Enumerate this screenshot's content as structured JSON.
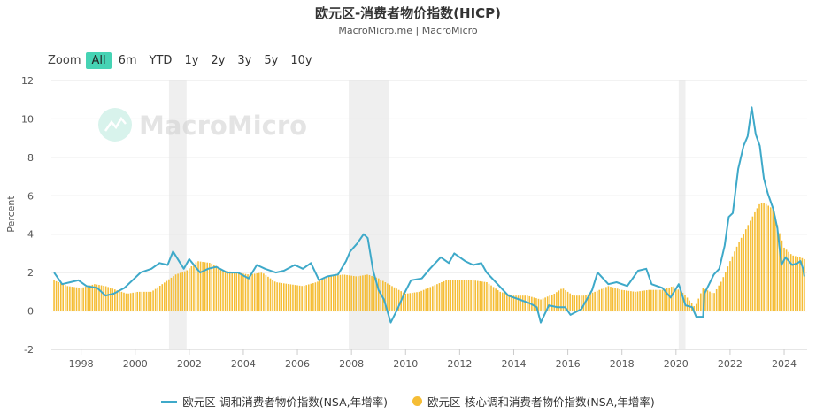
{
  "title": "欧元区-消费者物价指数(HICP)",
  "subtitle": "MacroMicro.me | MacroMicro",
  "watermark": "MacroMicro",
  "zoom": {
    "label": "Zoom",
    "buttons": [
      "All",
      "6m",
      "YTD",
      "1y",
      "2y",
      "3y",
      "5y",
      "10y"
    ],
    "active": "All"
  },
  "chart_data": {
    "type": "line",
    "ylabel": "Percent",
    "xlim": [
      1996.9,
      2024.85
    ],
    "ylim": [
      -2,
      12
    ],
    "yticks": [
      -2,
      0,
      2,
      4,
      6,
      8,
      10,
      12
    ],
    "xticks": [
      1998,
      2000,
      2002,
      2004,
      2006,
      2008,
      2010,
      2012,
      2014,
      2016,
      2018,
      2020,
      2022,
      2024
    ],
    "grid": true,
    "legend_position": "bottom",
    "recession_bands": [
      [
        2001.25,
        2001.9
      ],
      [
        2007.9,
        2009.4
      ],
      [
        2020.1,
        2020.35
      ]
    ],
    "series": [
      {
        "name": "欧元区-调和消费者物价指数(NSA,年增率)",
        "type": "line",
        "color": "#3ea9c9",
        "points": [
          [
            1997.0,
            2.0
          ],
          [
            1997.3,
            1.4
          ],
          [
            1997.6,
            1.5
          ],
          [
            1997.9,
            1.6
          ],
          [
            1998.2,
            1.3
          ],
          [
            1998.6,
            1.2
          ],
          [
            1998.9,
            0.8
          ],
          [
            1999.2,
            0.9
          ],
          [
            1999.6,
            1.2
          ],
          [
            1999.9,
            1.6
          ],
          [
            2000.2,
            2.0
          ],
          [
            2000.6,
            2.2
          ],
          [
            2000.9,
            2.5
          ],
          [
            2001.2,
            2.4
          ],
          [
            2001.4,
            3.1
          ],
          [
            2001.8,
            2.2
          ],
          [
            2002.0,
            2.7
          ],
          [
            2002.4,
            2.0
          ],
          [
            2002.7,
            2.2
          ],
          [
            2003.0,
            2.3
          ],
          [
            2003.4,
            2.0
          ],
          [
            2003.8,
            2.0
          ],
          [
            2004.2,
            1.7
          ],
          [
            2004.5,
            2.4
          ],
          [
            2004.8,
            2.2
          ],
          [
            2005.2,
            2.0
          ],
          [
            2005.5,
            2.1
          ],
          [
            2005.9,
            2.4
          ],
          [
            2006.2,
            2.2
          ],
          [
            2006.5,
            2.5
          ],
          [
            2006.8,
            1.6
          ],
          [
            2007.1,
            1.8
          ],
          [
            2007.5,
            1.9
          ],
          [
            2007.8,
            2.6
          ],
          [
            2007.95,
            3.1
          ],
          [
            2008.2,
            3.5
          ],
          [
            2008.45,
            4.0
          ],
          [
            2008.6,
            3.8
          ],
          [
            2008.8,
            2.1
          ],
          [
            2009.0,
            1.1
          ],
          [
            2009.2,
            0.6
          ],
          [
            2009.45,
            -0.6
          ],
          [
            2009.7,
            0.1
          ],
          [
            2009.95,
            0.9
          ],
          [
            2010.2,
            1.6
          ],
          [
            2010.6,
            1.7
          ],
          [
            2010.9,
            2.2
          ],
          [
            2011.3,
            2.8
          ],
          [
            2011.6,
            2.5
          ],
          [
            2011.8,
            3.0
          ],
          [
            2012.2,
            2.6
          ],
          [
            2012.5,
            2.4
          ],
          [
            2012.8,
            2.5
          ],
          [
            2013.0,
            2.0
          ],
          [
            2013.4,
            1.4
          ],
          [
            2013.8,
            0.8
          ],
          [
            2014.2,
            0.6
          ],
          [
            2014.6,
            0.4
          ],
          [
            2014.85,
            0.2
          ],
          [
            2015.0,
            -0.6
          ],
          [
            2015.3,
            0.3
          ],
          [
            2015.6,
            0.2
          ],
          [
            2015.9,
            0.2
          ],
          [
            2016.1,
            -0.2
          ],
          [
            2016.5,
            0.1
          ],
          [
            2016.9,
            1.1
          ],
          [
            2017.1,
            2.0
          ],
          [
            2017.5,
            1.4
          ],
          [
            2017.8,
            1.5
          ],
          [
            2018.2,
            1.3
          ],
          [
            2018.6,
            2.1
          ],
          [
            2018.9,
            2.2
          ],
          [
            2019.1,
            1.4
          ],
          [
            2019.5,
            1.2
          ],
          [
            2019.8,
            0.7
          ],
          [
            2020.1,
            1.4
          ],
          [
            2020.35,
            0.3
          ],
          [
            2020.6,
            0.2
          ],
          [
            2020.75,
            -0.3
          ],
          [
            2021.0,
            -0.3
          ],
          [
            2021.05,
            0.9
          ],
          [
            2021.4,
            1.9
          ],
          [
            2021.6,
            2.2
          ],
          [
            2021.8,
            3.4
          ],
          [
            2021.95,
            4.9
          ],
          [
            2022.1,
            5.1
          ],
          [
            2022.3,
            7.4
          ],
          [
            2022.5,
            8.6
          ],
          [
            2022.65,
            9.1
          ],
          [
            2022.8,
            10.6
          ],
          [
            2022.95,
            9.2
          ],
          [
            2023.1,
            8.6
          ],
          [
            2023.25,
            6.9
          ],
          [
            2023.4,
            6.1
          ],
          [
            2023.6,
            5.3
          ],
          [
            2023.75,
            4.3
          ],
          [
            2023.9,
            2.4
          ],
          [
            2024.05,
            2.8
          ],
          [
            2024.3,
            2.4
          ],
          [
            2024.5,
            2.5
          ],
          [
            2024.6,
            2.6
          ],
          [
            2024.7,
            2.2
          ],
          [
            2024.75,
            1.8
          ]
        ]
      },
      {
        "name": "欧元区-核心调和消费者物价指数(NSA,年增率)",
        "type": "bar",
        "color": "#f5bd35",
        "points": [
          [
            1997.0,
            1.6
          ],
          [
            1997.5,
            1.3
          ],
          [
            1998.0,
            1.2
          ],
          [
            1998.5,
            1.4
          ],
          [
            1998.9,
            1.3
          ],
          [
            1999.3,
            1.1
          ],
          [
            1999.7,
            0.9
          ],
          [
            2000.1,
            1.0
          ],
          [
            2000.6,
            1.0
          ],
          [
            2001.0,
            1.4
          ],
          [
            2001.5,
            1.9
          ],
          [
            2001.9,
            2.1
          ],
          [
            2002.3,
            2.6
          ],
          [
            2002.8,
            2.5
          ],
          [
            2003.3,
            2.1
          ],
          [
            2003.8,
            2.0
          ],
          [
            2004.2,
            1.9
          ],
          [
            2004.7,
            2.0
          ],
          [
            2005.2,
            1.5
          ],
          [
            2005.7,
            1.4
          ],
          [
            2006.2,
            1.3
          ],
          [
            2006.7,
            1.5
          ],
          [
            2007.2,
            1.8
          ],
          [
            2007.7,
            1.9
          ],
          [
            2008.2,
            1.8
          ],
          [
            2008.6,
            1.9
          ],
          [
            2009.0,
            1.7
          ],
          [
            2009.5,
            1.3
          ],
          [
            2010.0,
            0.9
          ],
          [
            2010.5,
            1.0
          ],
          [
            2011.0,
            1.3
          ],
          [
            2011.5,
            1.6
          ],
          [
            2012.0,
            1.6
          ],
          [
            2012.5,
            1.6
          ],
          [
            2013.0,
            1.5
          ],
          [
            2013.5,
            1.0
          ],
          [
            2014.0,
            0.8
          ],
          [
            2014.5,
            0.8
          ],
          [
            2015.0,
            0.6
          ],
          [
            2015.5,
            0.9
          ],
          [
            2015.8,
            1.2
          ],
          [
            2016.2,
            0.8
          ],
          [
            2016.6,
            0.8
          ],
          [
            2017.0,
            1.0
          ],
          [
            2017.5,
            1.3
          ],
          [
            2018.0,
            1.1
          ],
          [
            2018.5,
            1.0
          ],
          [
            2019.0,
            1.1
          ],
          [
            2019.5,
            1.1
          ],
          [
            2019.9,
            1.3
          ],
          [
            2020.3,
            0.9
          ],
          [
            2020.7,
            0.2
          ],
          [
            2021.0,
            1.2
          ],
          [
            2021.4,
            0.9
          ],
          [
            2021.7,
            1.6
          ],
          [
            2022.0,
            2.6
          ],
          [
            2022.3,
            3.5
          ],
          [
            2022.6,
            4.3
          ],
          [
            2022.9,
            5.1
          ],
          [
            2023.1,
            5.6
          ],
          [
            2023.3,
            5.6
          ],
          [
            2023.6,
            5.3
          ],
          [
            2023.8,
            4.2
          ],
          [
            2024.0,
            3.3
          ],
          [
            2024.3,
            2.9
          ],
          [
            2024.6,
            2.8
          ],
          [
            2024.75,
            2.7
          ]
        ]
      }
    ]
  }
}
